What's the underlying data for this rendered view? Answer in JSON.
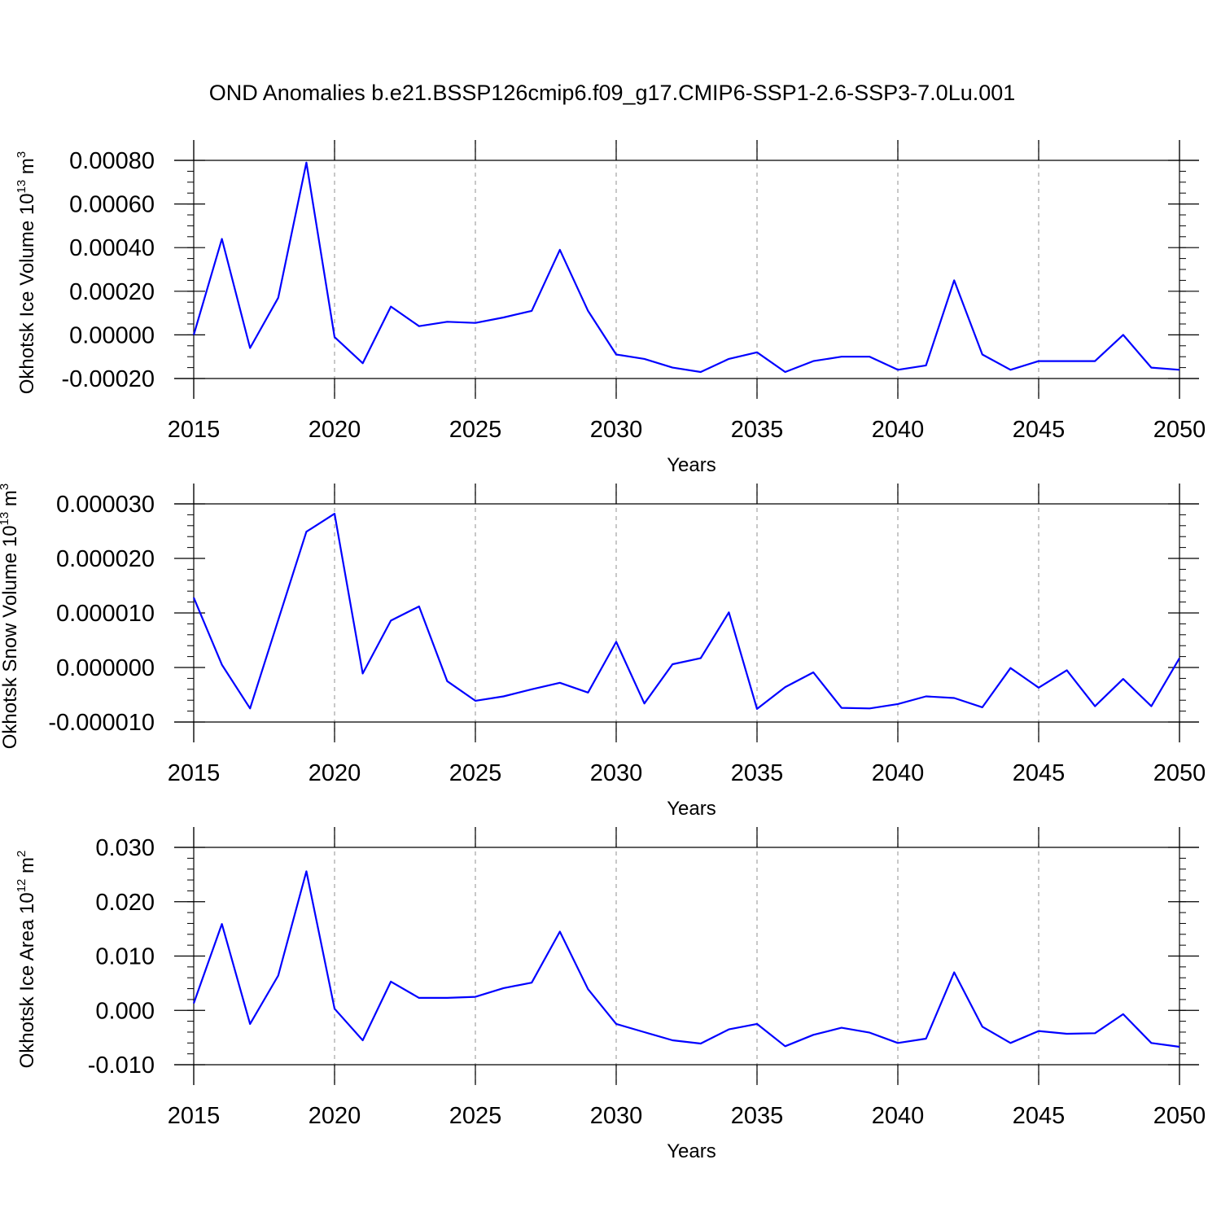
{
  "title": "OND Anomalies b.e21.BSSP126cmip6.f09_g17.CMIP6-SSP1-2.6-SSP3-7.0Lu.001",
  "colors": {
    "series": "#0000ff",
    "grid": "#b0b0b0",
    "axes": "#000000"
  },
  "chart_data": [
    {
      "type": "line",
      "xlabel": "Years",
      "ylabel": "Okhotsk Ice Volume 10",
      "ylabel_exp": "13",
      "ylabel_unit": " m",
      "ylabel_unit_exp": "3",
      "xlim": [
        2015,
        2050
      ],
      "ylim": [
        -0.0002,
        0.0008
      ],
      "yticks": [
        -0.0002,
        0.0,
        0.0002,
        0.0004,
        0.0006,
        0.0008
      ],
      "ytick_labels": [
        "-0.00020",
        "0.00000",
        "0.00020",
        "0.00040",
        "0.00060",
        "0.00080"
      ],
      "yminor_step": 5e-05,
      "xticks": [
        2015,
        2020,
        2025,
        2030,
        2035,
        2040,
        2045,
        2050
      ],
      "xtick_labels": [
        "2015",
        "2020",
        "2025",
        "2030",
        "2035",
        "2040",
        "2045",
        "2050"
      ],
      "grid": "x-dashed",
      "x": [
        2015,
        2016,
        2017,
        2018,
        2019,
        2020,
        2021,
        2022,
        2023,
        2024,
        2025,
        2026,
        2027,
        2028,
        2029,
        2030,
        2031,
        2032,
        2033,
        2034,
        2035,
        2036,
        2037,
        2038,
        2039,
        2040,
        2041,
        2042,
        2043,
        2044,
        2045,
        2046,
        2047,
        2048,
        2049,
        2050
      ],
      "y": [
        0.0,
        0.00044,
        -6e-05,
        0.00017,
        0.00079,
        -1e-05,
        -0.00013,
        0.00013,
        4e-05,
        6e-05,
        5.5e-05,
        8e-05,
        0.00011,
        0.00039,
        0.00011,
        -9e-05,
        -0.00011,
        -0.00015,
        -0.00017,
        -0.00011,
        -8e-05,
        -0.00017,
        -0.00012,
        -0.0001,
        -0.0001,
        -0.00016,
        -0.00014,
        0.00025,
        -9e-05,
        -0.00016,
        -0.00012,
        -0.00012,
        -0.00012,
        0.0,
        -0.00015,
        -0.00016
      ]
    },
    {
      "type": "line",
      "xlabel": "Years",
      "ylabel": "Okhotsk Snow Volume 10",
      "ylabel_exp": "13",
      "ylabel_unit": " m",
      "ylabel_unit_exp": "3",
      "xlim": [
        2015,
        2050
      ],
      "ylim": [
        -1e-05,
        3e-05
      ],
      "yticks": [
        -1e-05,
        0.0,
        1e-05,
        2e-05,
        3e-05
      ],
      "ytick_labels": [
        "-0.000010",
        "0.000000",
        "0.000010",
        "0.000020",
        "0.000030"
      ],
      "yminor_step": 2e-06,
      "xticks": [
        2015,
        2020,
        2025,
        2030,
        2035,
        2040,
        2045,
        2050
      ],
      "xtick_labels": [
        "2015",
        "2020",
        "2025",
        "2030",
        "2035",
        "2040",
        "2045",
        "2050"
      ],
      "grid": "x-dashed",
      "x": [
        2015,
        2016,
        2017,
        2018,
        2019,
        2020,
        2021,
        2022,
        2023,
        2024,
        2025,
        2026,
        2027,
        2028,
        2029,
        2030,
        2031,
        2032,
        2033,
        2034,
        2035,
        2036,
        2037,
        2038,
        2039,
        2040,
        2041,
        2042,
        2043,
        2044,
        2045,
        2046,
        2047,
        2048,
        2049,
        2050
      ],
      "y": [
        1.28e-05,
        5e-07,
        -7.5e-06,
        8.7e-06,
        2.49e-05,
        2.82e-05,
        -1.1e-06,
        8.6e-06,
        1.12e-05,
        -2.5e-06,
        -6.1e-06,
        -5.3e-06,
        -4e-06,
        -2.8e-06,
        -4.6e-06,
        4.7e-06,
        -6.6e-06,
        6e-07,
        1.7e-06,
        1.01e-05,
        -7.6e-06,
        -3.6e-06,
        -9e-07,
        -7.4e-06,
        -7.5e-06,
        -6.7e-06,
        -5.3e-06,
        -5.6e-06,
        -7.3e-06,
        -1e-07,
        -3.7e-06,
        -5e-07,
        -7.1e-06,
        -2.1e-06,
        -7.1e-06,
        1.7e-06
      ]
    },
    {
      "type": "line",
      "xlabel": "Years",
      "ylabel": "Okhotsk Ice Area 10",
      "ylabel_exp": "12",
      "ylabel_unit": " m",
      "ylabel_unit_exp": "2",
      "xlim": [
        2015,
        2050
      ],
      "ylim": [
        -0.01,
        0.03
      ],
      "yticks": [
        -0.01,
        0.0,
        0.01,
        0.02,
        0.03
      ],
      "ytick_labels": [
        "-0.010",
        "0.000",
        "0.010",
        "0.020",
        "0.030"
      ],
      "yminor_step": 0.002,
      "xticks": [
        2015,
        2020,
        2025,
        2030,
        2035,
        2040,
        2045,
        2050
      ],
      "xtick_labels": [
        "2015",
        "2020",
        "2025",
        "2030",
        "2035",
        "2040",
        "2045",
        "2050"
      ],
      "grid": "x-dashed",
      "x": [
        2015,
        2016,
        2017,
        2018,
        2019,
        2020,
        2021,
        2022,
        2023,
        2024,
        2025,
        2026,
        2027,
        2028,
        2029,
        2030,
        2031,
        2032,
        2033,
        2034,
        2035,
        2036,
        2037,
        2038,
        2039,
        2040,
        2041,
        2042,
        2043,
        2044,
        2045,
        2046,
        2047,
        2048,
        2049,
        2050
      ],
      "y": [
        0.0013,
        0.0159,
        -0.0025,
        0.0064,
        0.0256,
        0.0003,
        -0.0055,
        0.0053,
        0.0023,
        0.0023,
        0.0025,
        0.0041,
        0.0051,
        0.0145,
        0.0039,
        -0.0025,
        -0.004,
        -0.0055,
        -0.0061,
        -0.0035,
        -0.0025,
        -0.0066,
        -0.0045,
        -0.0032,
        -0.0041,
        -0.006,
        -0.0052,
        0.007,
        -0.003,
        -0.006,
        -0.0038,
        -0.0043,
        -0.0042,
        -0.0007,
        -0.006,
        -0.0067
      ]
    }
  ]
}
